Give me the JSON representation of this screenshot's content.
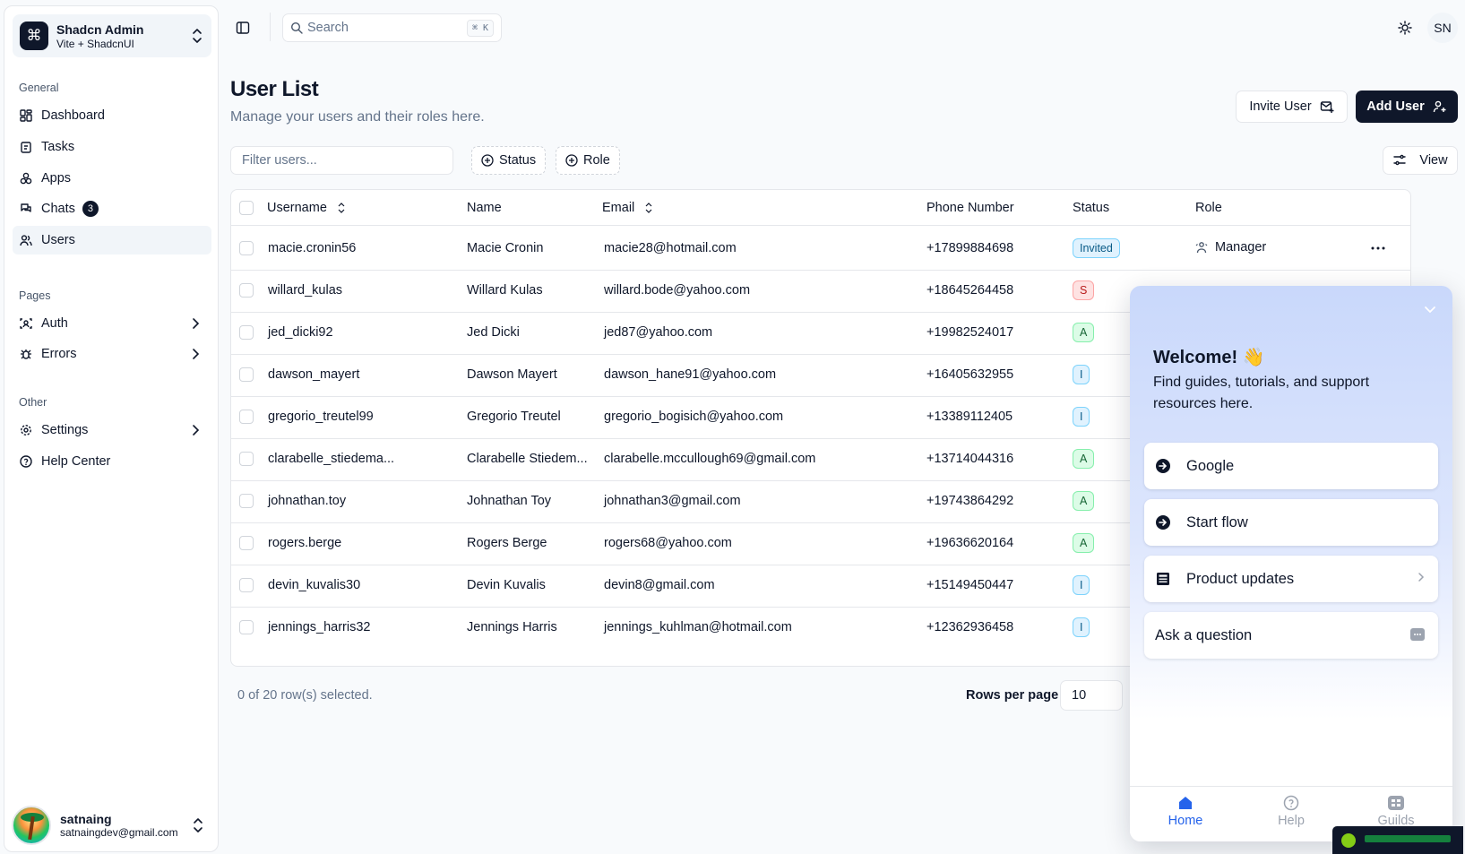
{
  "team": {
    "name": "Shadcn Admin",
    "plan": "Vite + ShadcnUI"
  },
  "sidebar": {
    "groups": [
      {
        "label": "General"
      },
      {
        "label": "Pages"
      },
      {
        "label": "Other"
      }
    ],
    "items": [
      {
        "label": "Dashboard",
        "icon": "dashboard-icon"
      },
      {
        "label": "Tasks",
        "icon": "clipboard-icon"
      },
      {
        "label": "Apps",
        "icon": "apps-icon"
      },
      {
        "label": "Chats",
        "icon": "chat-icon",
        "badge": "3"
      },
      {
        "label": "Users",
        "icon": "users-icon",
        "active": true
      },
      {
        "label": "Auth",
        "icon": "auth-icon"
      },
      {
        "label": "Errors",
        "icon": "bug-icon"
      },
      {
        "label": "Settings",
        "icon": "gear-icon"
      },
      {
        "label": "Help Center",
        "icon": "help-icon"
      }
    ]
  },
  "user": {
    "name": "satnaing",
    "email": "satnaingdev@gmail.com",
    "initials": "SN"
  },
  "topbar": {
    "search_placeholder": "Search",
    "shortcut": "⌘ K"
  },
  "page": {
    "title": "User List",
    "subtitle": "Manage your users and their roles here.",
    "invite_label": "Invite User",
    "add_label": "Add User",
    "filter_placeholder": "Filter users...",
    "status_filter": "Status",
    "role_filter": "Role",
    "view_label": "View"
  },
  "table": {
    "columns": [
      "Username",
      "Name",
      "Email",
      "Phone Number",
      "Status",
      "Role"
    ],
    "rows": [
      {
        "username": "macie.cronin56",
        "name": "Macie Cronin",
        "email": "macie28@hotmail.com",
        "phone": "+17899884698",
        "status": "Invited",
        "role": "Manager"
      },
      {
        "username": "willard_kulas",
        "name": "Willard Kulas",
        "email": "willard.bode@yahoo.com",
        "phone": "+18645264458",
        "status": "S",
        "role": ""
      },
      {
        "username": "jed_dicki92",
        "name": "Jed Dicki",
        "email": "jed87@yahoo.com",
        "phone": "+19982524017",
        "status": "A",
        "role": ""
      },
      {
        "username": "dawson_mayert",
        "name": "Dawson Mayert",
        "email": "dawson_hane91@yahoo.com",
        "phone": "+16405632955",
        "status": "I",
        "role": ""
      },
      {
        "username": "gregorio_treutel99",
        "name": "Gregorio Treutel",
        "email": "gregorio_bogisich@yahoo.com",
        "phone": "+13389112405",
        "status": "I",
        "role": ""
      },
      {
        "username": "clarabelle_stiedema...",
        "name": "Clarabelle Stiedem...",
        "email": "clarabelle.mccullough69@gmail.com",
        "phone": "+13714044316",
        "status": "A",
        "role": ""
      },
      {
        "username": "johnathan.toy",
        "name": "Johnathan Toy",
        "email": "johnathan3@gmail.com",
        "phone": "+19743864292",
        "status": "A",
        "role": ""
      },
      {
        "username": "rogers.berge",
        "name": "Rogers Berge",
        "email": "rogers68@yahoo.com",
        "phone": "+19636620164",
        "status": "A",
        "role": ""
      },
      {
        "username": "devin_kuvalis30",
        "name": "Devin Kuvalis",
        "email": "devin8@gmail.com",
        "phone": "+15149450447",
        "status": "I",
        "role": ""
      },
      {
        "username": "jennings_harris32",
        "name": "Jennings Harris",
        "email": "jennings_kuhlman@hotmail.com",
        "phone": "+12362936458",
        "status": "I",
        "role": ""
      }
    ]
  },
  "pagination": {
    "selected_text": "0 of 20 row(s) selected.",
    "rows_per_page_label": "Rows per page",
    "rows_per_page": "10"
  },
  "widget": {
    "title": "Welcome! 👋",
    "description": "Find guides, tutorials, and support resources here.",
    "cards": [
      {
        "label": "Google"
      },
      {
        "label": "Start flow"
      },
      {
        "label": "Product updates"
      },
      {
        "label": "Ask a question"
      }
    ],
    "tabs": [
      {
        "label": "Home"
      },
      {
        "label": "Help"
      },
      {
        "label": "Guilds"
      }
    ]
  }
}
